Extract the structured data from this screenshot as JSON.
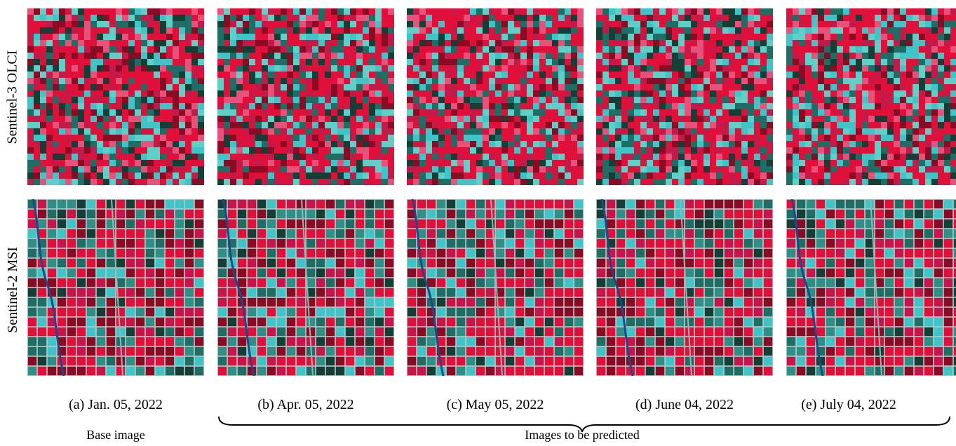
{
  "figure": {
    "row_labels": [
      "Sentinel-3 OLCI",
      "Sentinel-2 MSI"
    ],
    "columns": [
      {
        "id": "a",
        "caption": "(a) Jan. 05, 2022"
      },
      {
        "id": "b",
        "caption": "(b) Apr. 05, 2022"
      },
      {
        "id": "c",
        "caption": "(c) May 05, 2022"
      },
      {
        "id": "d",
        "caption": "(d) June 04, 2022"
      },
      {
        "id": "e",
        "caption": "(e) July 04, 2022"
      }
    ],
    "base_label": "Base image",
    "predicted_label": "Images to be predicted",
    "palette": {
      "vegetation_red": "#e0103a",
      "dark_red": "#8a0c24",
      "cyan": "#3fc4c8",
      "teal": "#1f6e66",
      "dark_green": "#153f36",
      "field_line": "#b9c9c8",
      "river": "#1a4a8a"
    }
  }
}
